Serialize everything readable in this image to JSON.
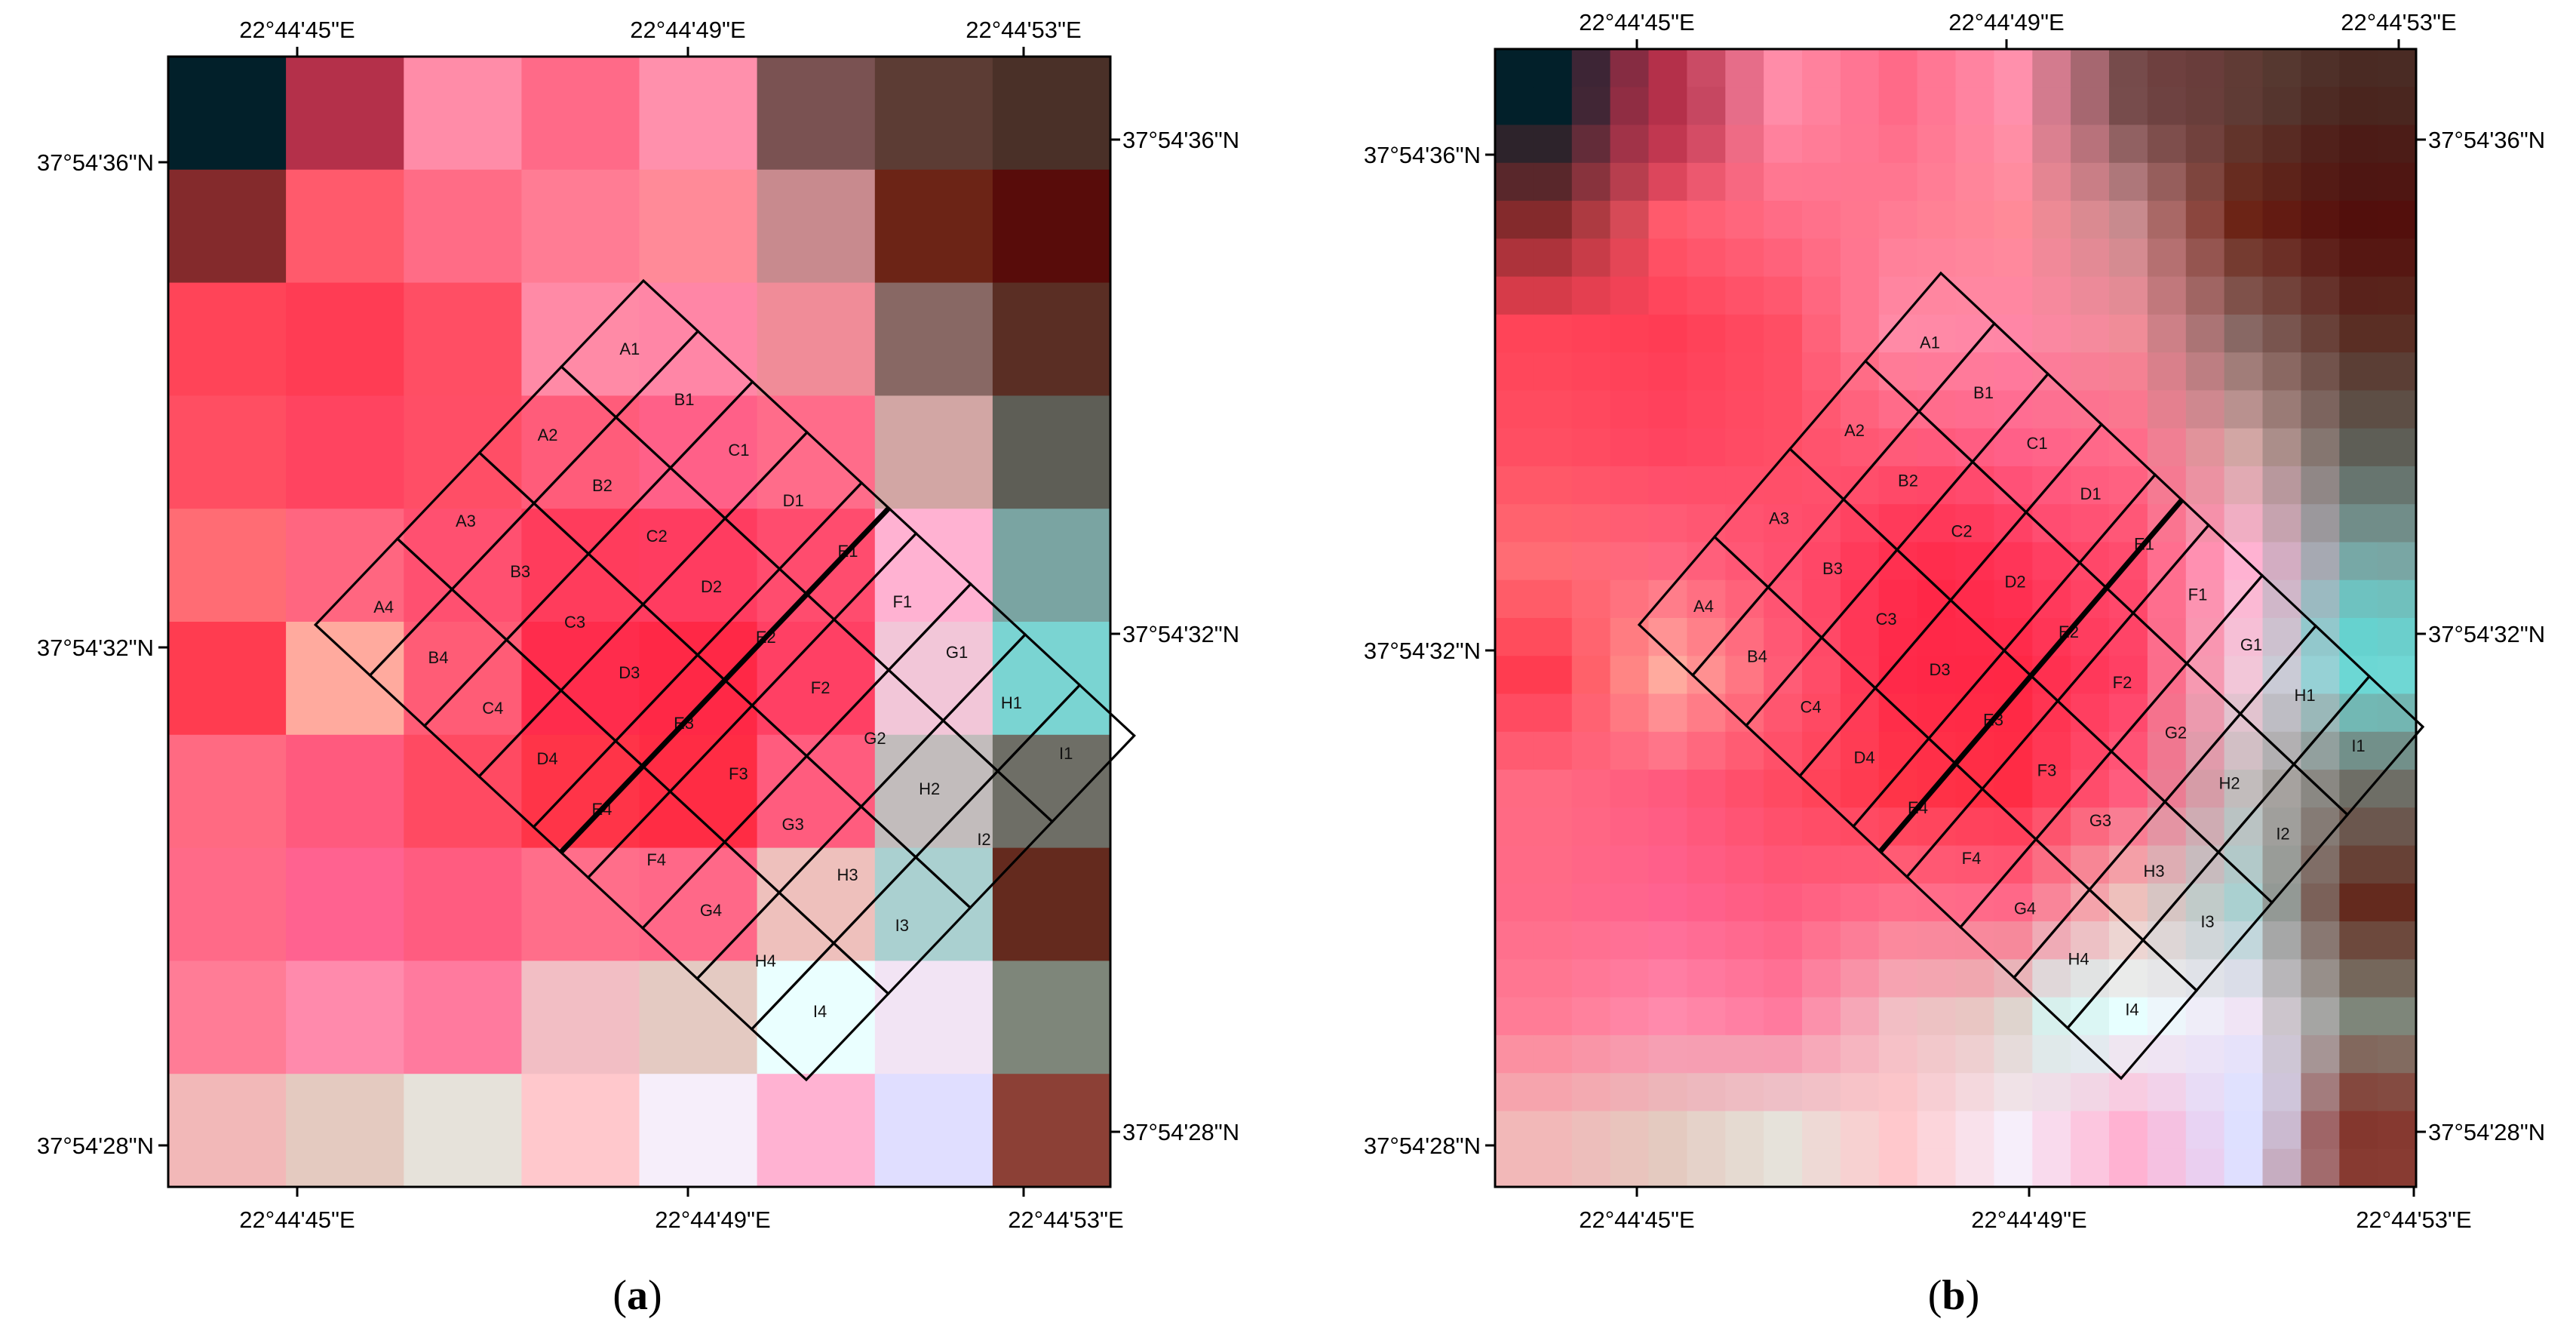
{
  "panels": [
    {
      "id": "a",
      "caption_open": "(",
      "caption_letter": "a",
      "caption_close": ")",
      "top_lon_labels": [
        "22°44'45\"E",
        "22°44'49\"E",
        "22°44'53\"E"
      ],
      "bottom_lon_labels": [
        "22°44'45\"E",
        "22°44'49\"E",
        "22°44'53\"E"
      ],
      "left_lat_labels": [
        "37°54'36\"N",
        "37°54'32\"N",
        "37°54'28\"N"
      ],
      "right_lat_labels": [
        "37°54'36\"N",
        "37°54'32\"N",
        "37°54'28\"N"
      ]
    },
    {
      "id": "b",
      "caption_open": "(",
      "caption_letter": "b",
      "caption_close": ")",
      "top_lon_labels": [
        "22°44'45\"E",
        "22°44'49\"E",
        "22°44'53\"E"
      ],
      "bottom_lon_labels": [
        "22°44'45\"E",
        "22°44'49\"E",
        "22°44'53\"E"
      ],
      "left_lat_labels": [
        "37°54'36\"N",
        "37°54'32\"N",
        "37°54'28\"N"
      ],
      "right_lat_labels": [
        "37°54'36\"N",
        "37°54'32\"N",
        "37°54'28\"N"
      ]
    }
  ],
  "plot_rows": [
    "A",
    "B",
    "C",
    "D",
    "E",
    "F",
    "G",
    "H",
    "I"
  ],
  "plot_cols": [
    "1",
    "2",
    "3",
    "4"
  ],
  "plot_labels": [
    "A1",
    "A2",
    "A3",
    "A4",
    "B1",
    "B2",
    "B3",
    "B4",
    "C1",
    "C2",
    "C3",
    "C4",
    "D1",
    "D2",
    "D3",
    "D4",
    "E1",
    "E2",
    "E3",
    "E4",
    "F1",
    "F2",
    "F3",
    "F4",
    "G1",
    "G2",
    "G3",
    "G4",
    "H1",
    "H2",
    "H3",
    "H4",
    "I1",
    "I2",
    "I3",
    "I4"
  ],
  "raster_a": [
    [
      "#02202a",
      "#b4304a",
      "#ff8ca8",
      "#ff6a88",
      "#ff90ac",
      "#7a5252",
      "#5c3c34",
      "#4a3028"
    ],
    [
      "#842a2c",
      "#ff5a6c",
      "#ff6c86",
      "#ff7c94",
      "#ff8a98",
      "#c88a8e",
      "#6c2416",
      "#580c0a"
    ],
    [
      "#ff4458",
      "#ff3c54",
      "#ff4e64",
      "#ff8aa6",
      "#ff86a6",
      "#f08c98",
      "#886864",
      "#5a2e24"
    ],
    [
      "#ff4e62",
      "#ff4460",
      "#ff4e66",
      "#ff5c7a",
      "#ff6088",
      "#ff6c8a",
      "#d2a6a4",
      "#5e5e56"
    ],
    [
      "#ff6c74",
      "#ff6680",
      "#ff5070",
      "#ff3c5c",
      "#ff3c60",
      "#ff4c6e",
      "#ffb2d2",
      "#7aa4a2"
    ],
    [
      "#ff3c50",
      "#ffaa9e",
      "#ff5c76",
      "#ff2c4c",
      "#ff2846",
      "#ff4064",
      "#f2c6d8",
      "#7ad4d2"
    ],
    [
      "#ff6a82",
      "#ff5a7e",
      "#ff4a62",
      "#ff3448",
      "#ff2c44",
      "#ff5c7e",
      "#c2bcbc",
      "#6e6e66"
    ],
    [
      "#ff6a88",
      "#ff6290",
      "#ff5c80",
      "#ff6e8a",
      "#ff6888",
      "#eec0bc",
      "#aad0d0",
      "#642a1e"
    ],
    [
      "#ff7c96",
      "#ff8aac",
      "#ff7a9e",
      "#f2bec4",
      "#e4cac2",
      "#eaffff",
      "#f2e4f4",
      "#7e867a"
    ],
    [
      "#f2b8b8",
      "#e4cac0",
      "#e6e2da",
      "#ffc8cc",
      "#f6eefa",
      "#ffb2d2",
      "#e0deff",
      "#8c4036"
    ]
  ],
  "raster_b_hotspots": [
    {
      "u": 0.03,
      "v": 0.01,
      "color": "#02202a",
      "radius": 0.06
    },
    {
      "u": 0.18,
      "v": 0.06,
      "color": "#b4304a",
      "radius": 0.08
    },
    {
      "u": 0.75,
      "v": 0.02,
      "color": "#6c3838",
      "radius": 0.1
    },
    {
      "u": 0.95,
      "v": 0.1,
      "color": "#4a1410",
      "radius": 0.12
    },
    {
      "u": 0.95,
      "v": 0.52,
      "color": "#58dcd8",
      "radius": 0.08
    },
    {
      "u": 0.62,
      "v": 0.85,
      "color": "#ccffff",
      "radius": 0.08
    },
    {
      "u": 0.82,
      "v": 0.92,
      "color": "#dce2ff",
      "radius": 0.08
    },
    {
      "u": 0.95,
      "v": 0.95,
      "color": "#7e3028",
      "radius": 0.08
    },
    {
      "u": 0.48,
      "v": 0.48,
      "color": "#ff2040",
      "radius": 0.14
    }
  ]
}
